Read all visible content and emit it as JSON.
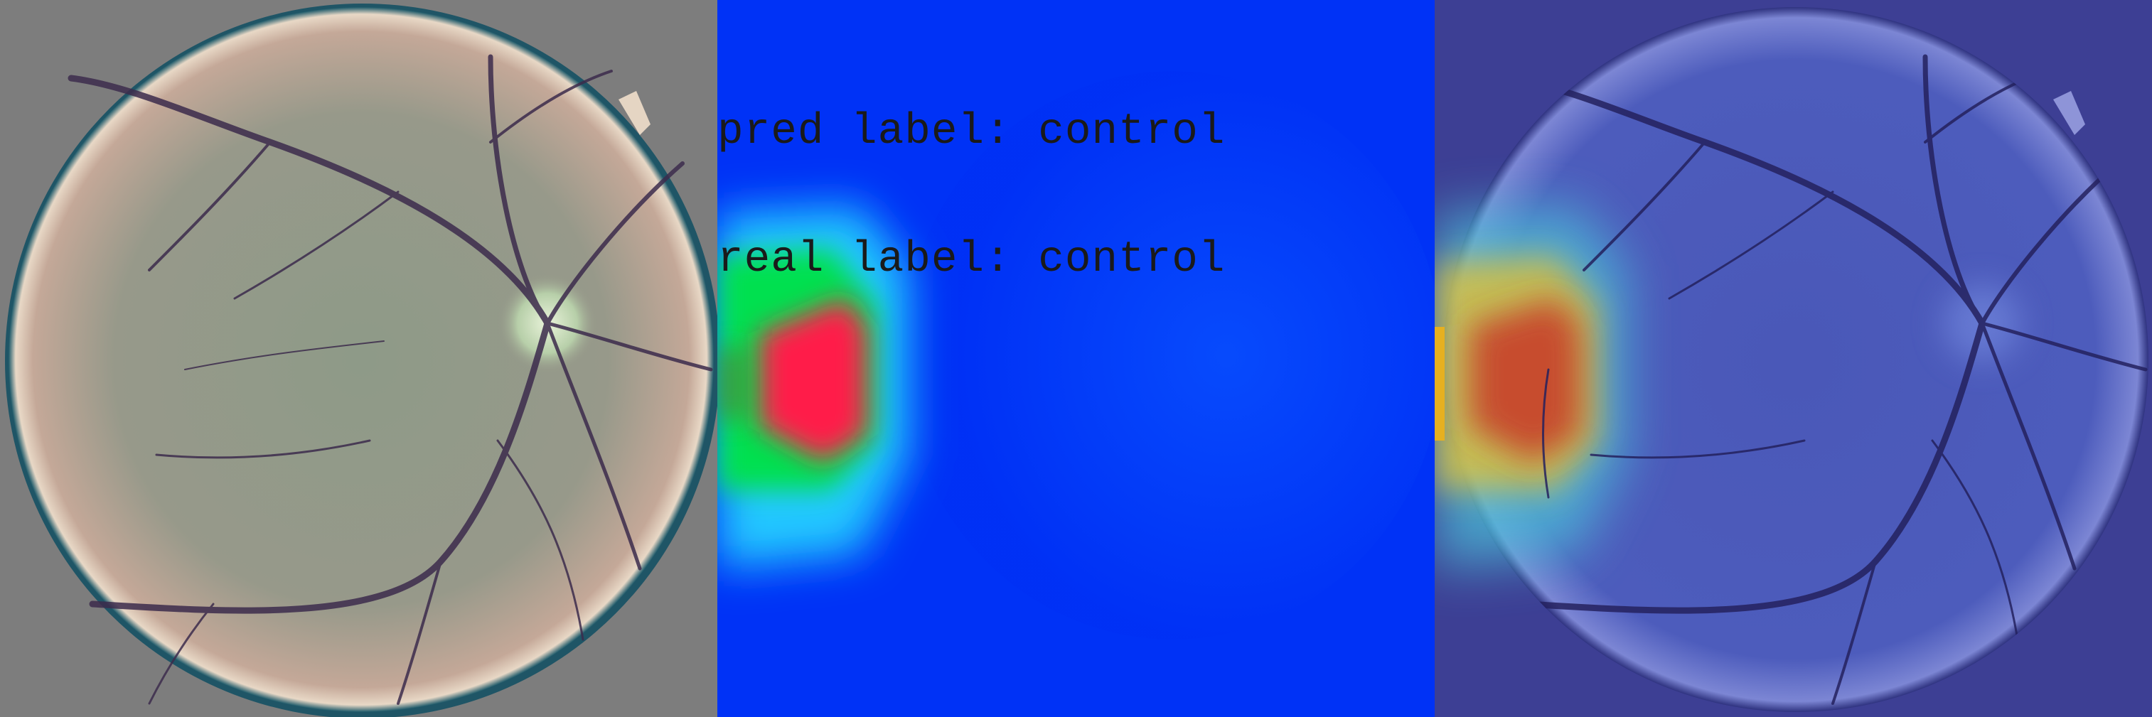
{
  "panels": {
    "original": {
      "description_name": "fundus-photograph"
    },
    "heatmap": {
      "description_name": "saliency-heatmap"
    },
    "overlay": {
      "description_name": "heatmap-overlay"
    }
  },
  "labels": {
    "pred": "pred label: control",
    "real": "real label: control"
  },
  "colors": {
    "left_background": "#7d7d7d",
    "heatmap_base": "#0033ff",
    "heatmap_hot": "#ff1a4a",
    "heatmap_warm": "#00e040",
    "overlay_background": "#3d3f94",
    "vessel": "#3b2a4a"
  }
}
